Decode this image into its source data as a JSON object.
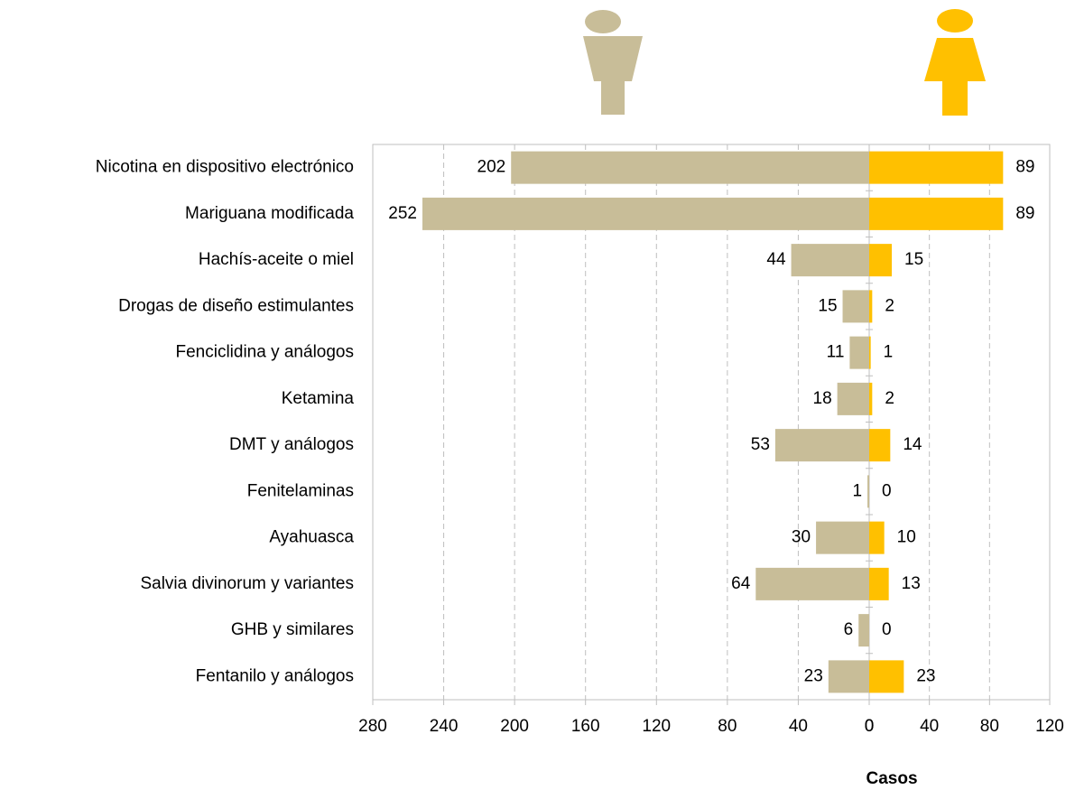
{
  "chart_data": {
    "type": "pyramid",
    "categories": [
      "Nicotina en dispositivo electrónico",
      "Mariguana modificada",
      "Hachís-aceite o miel",
      "Drogas de diseño  estimulantes",
      "Fenciclidina y análogos",
      "Ketamina",
      "DMT y análogos",
      "Fenitelaminas",
      "Ayahuasca",
      "Salvia divinorum y variantes",
      "GHB y similares",
      "Fentanilo y análogos"
    ],
    "series": [
      {
        "color": "#c8bd98",
        "values": [
          202,
          252,
          44,
          15,
          11,
          18,
          53,
          1,
          30,
          64,
          6,
          23
        ],
        "xlim": [
          280,
          0
        ],
        "xticks": [
          280,
          240,
          200,
          160,
          120,
          80,
          40,
          0
        ]
      },
      {
        "color": "#ffc000",
        "values": [
          89,
          89,
          15,
          2,
          1,
          2,
          14,
          0,
          10,
          13,
          0,
          23
        ],
        "xlim": [
          0,
          120
        ],
        "xticks": [
          0,
          40,
          80,
          120
        ]
      }
    ],
    "xlabel": "Casos",
    "grid": true
  }
}
